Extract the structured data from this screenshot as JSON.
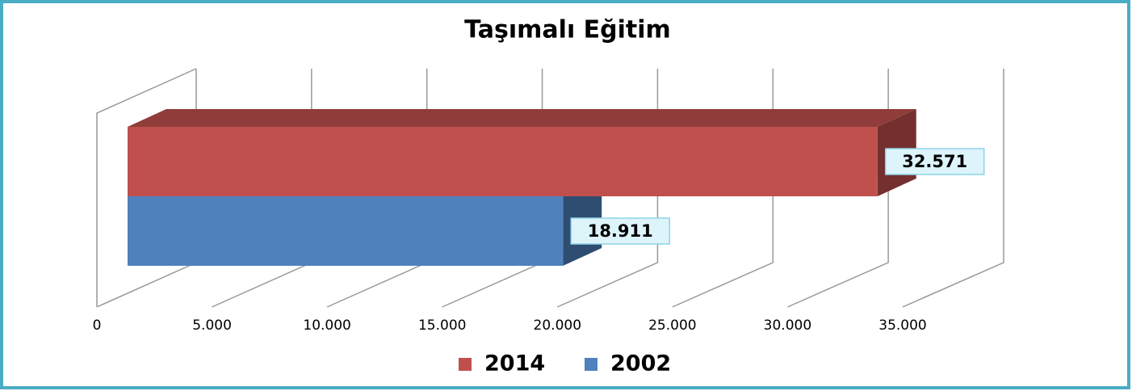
{
  "chart_data": {
    "type": "bar3d",
    "orientation": "horizontal",
    "title": "Taşımalı Eğitim",
    "categories": [
      null
    ],
    "series": [
      {
        "name": "2014",
        "color": "#c0504d",
        "values": [
          32571
        ],
        "value_labels": [
          "32.571"
        ]
      },
      {
        "name": "2002",
        "color": "#4f81bd",
        "values": [
          18911
        ],
        "value_labels": [
          "18.911"
        ]
      }
    ],
    "xlim": [
      0,
      35000
    ],
    "xticks": [
      0,
      {
        "value": 5000,
        "label": "5.000"
      },
      {
        "value": 10000,
        "label": "10.000"
      },
      {
        "value": 15000,
        "label": "15.000"
      },
      {
        "value": 20000,
        "label": "20.000"
      },
      {
        "value": 25000,
        "label": "25.000"
      },
      {
        "value": 30000,
        "label": "30.000"
      },
      {
        "value": 35000,
        "label": "35.000"
      }
    ],
    "grid": true,
    "legend": "bottom"
  }
}
